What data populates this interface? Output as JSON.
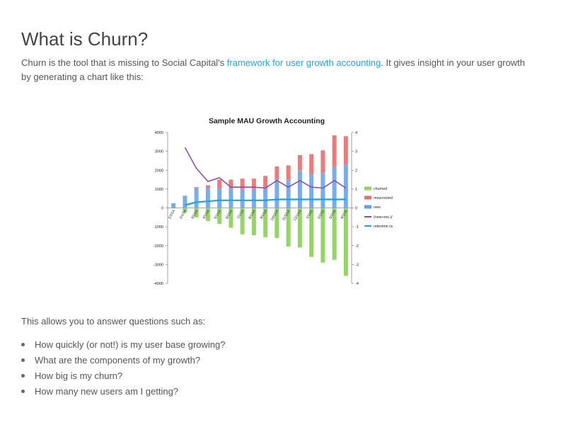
{
  "page": {
    "title": "What is Churn?",
    "intro_before_link": "Churn is the tool that is missing to Social Capital's ",
    "intro_link": "framework for user growth accounting",
    "intro_after_link": ". It gives insight in your user growth by generating a chart like this:",
    "questions_intro": "This allows you to answer questions such as:",
    "questions": [
      "How quickly (or not!) is my user base growing?",
      "What are the components of my growth?",
      "How big is my churn?",
      "How many new users am I getting?"
    ]
  },
  "chart_data": {
    "type": "bar",
    "title": "Sample MAU Growth Accounting",
    "categories": [
      "1/1/14",
      "2/1/14",
      "3/1/14",
      "4/1/14",
      "5/1/14",
      "6/1/14",
      "7/1/14",
      "8/1/14",
      "9/1/14",
      "10/1/14",
      "11/1/14",
      "12/1/14",
      "1/1/15",
      "2/1/15",
      "3/1/15",
      "4/1/15"
    ],
    "series": [
      {
        "name": "churned",
        "kind": "bar",
        "axis": "left",
        "color": "#8fd35f",
        "values": [
          0,
          -250,
          -500,
          -700,
          -850,
          -1050,
          -1400,
          -1450,
          -1550,
          -1600,
          -2050,
          -2100,
          -2600,
          -2900,
          -2750,
          -3600
        ]
      },
      {
        "name": "resurrected",
        "kind": "bar",
        "axis": "left",
        "color": "#ee6b6b",
        "values": [
          0,
          0,
          50,
          150,
          450,
          450,
          550,
          550,
          650,
          700,
          750,
          800,
          1050,
          1200,
          1650,
          1500
        ]
      },
      {
        "name": "new",
        "kind": "bar",
        "axis": "left",
        "color": "#5f9fe6",
        "values": [
          250,
          650,
          1050,
          1050,
          1050,
          1050,
          1000,
          1000,
          1050,
          1500,
          1500,
          2000,
          1800,
          1850,
          2200,
          2300
        ]
      },
      {
        "name": "(new+res.)/churned",
        "kind": "line",
        "axis": "right",
        "color": "#8a4fb0",
        "values": [
          null,
          3.2,
          2.1,
          1.4,
          1.6,
          1.1,
          1.1,
          1.1,
          1.05,
          1.45,
          1.1,
          1.45,
          1.1,
          1.05,
          1.45,
          1.05
        ]
      },
      {
        "name": "retention rate",
        "kind": "line",
        "axis": "right",
        "color": "#1aa7d8",
        "values": [
          null,
          0.15,
          0.3,
          0.35,
          0.4,
          0.4,
          0.4,
          0.4,
          0.4,
          0.45,
          0.45,
          0.45,
          0.45,
          0.45,
          0.45,
          0.45
        ]
      }
    ],
    "ylim": [
      -4000,
      4000
    ],
    "yticks": [
      4000,
      3000,
      2000,
      1000,
      0,
      -1000,
      -2000,
      -3000,
      -4000
    ],
    "y2lim": [
      -4,
      4
    ],
    "y2ticks": [
      4,
      3,
      2,
      1,
      0,
      -1,
      -2,
      -3,
      -4
    ],
    "grid": false,
    "legend_position": "right"
  }
}
